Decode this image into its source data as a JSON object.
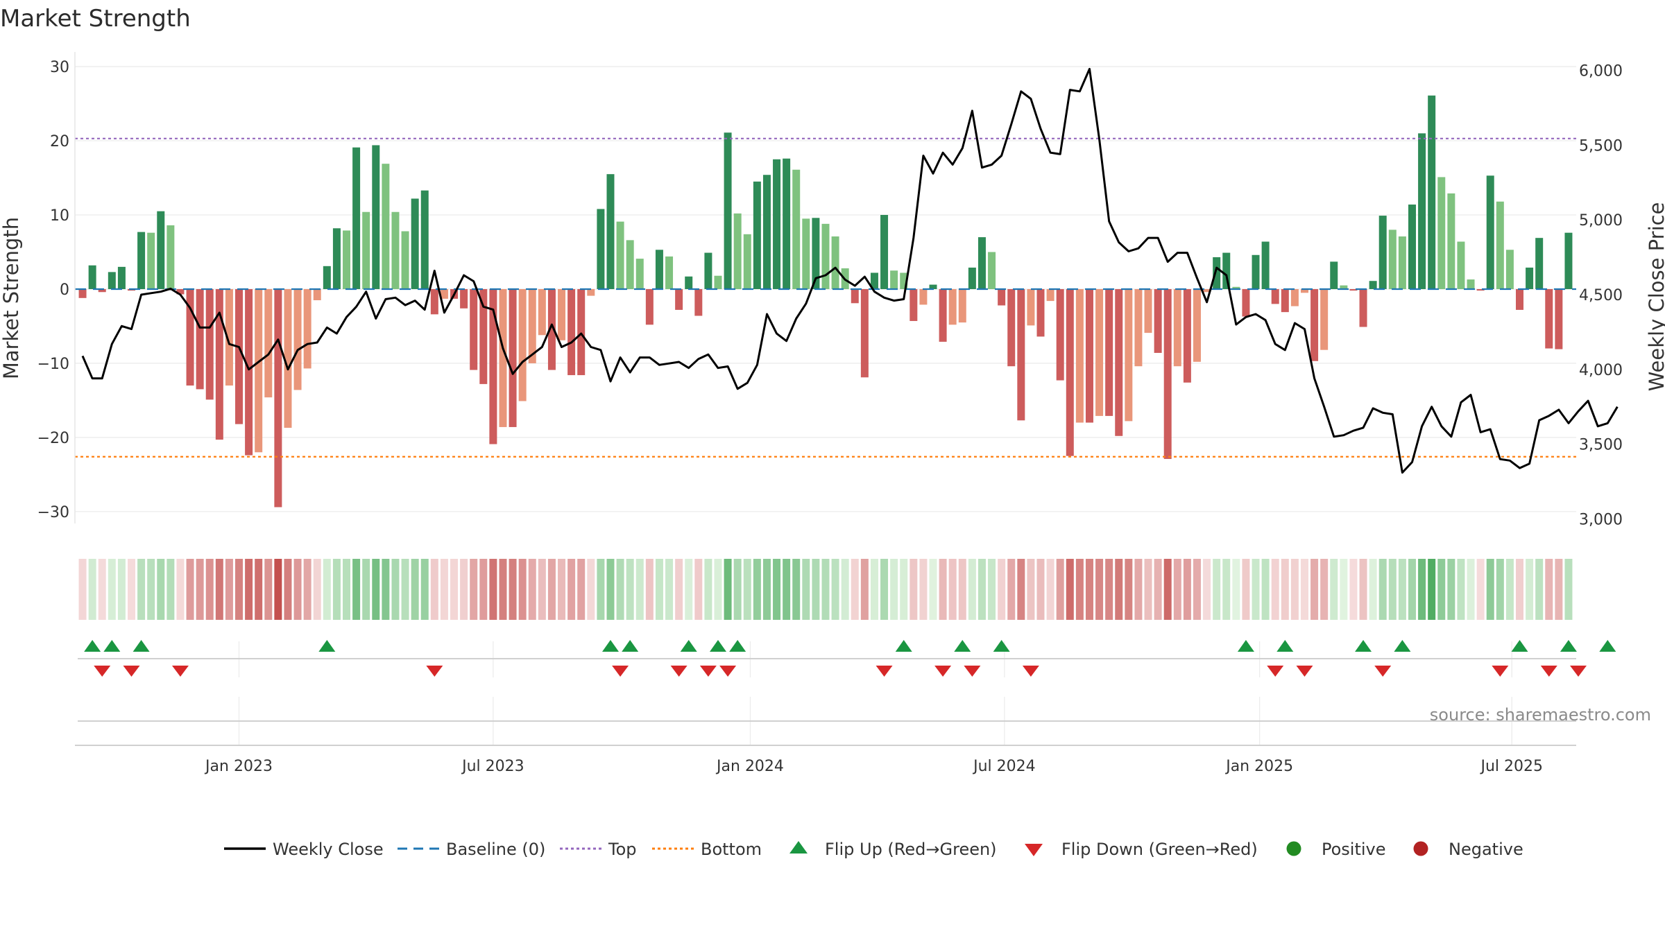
{
  "chart_data": {
    "type": "bar",
    "title": "Market Strength",
    "ylabel_left": "Market Strength",
    "ylabel_right": "Weekly Close Price",
    "source": "source: sharemaestro.com",
    "ylim_left": [
      -33,
      31.5
    ],
    "ylim_right": [
      2900,
      6100
    ],
    "yticks_left": [
      30,
      20,
      10,
      0,
      -10,
      -20,
      -30
    ],
    "ytick_labels_left": [
      "30",
      "20",
      "10",
      "0",
      "−10",
      "−20",
      "−30"
    ],
    "yticks_right": [
      6000,
      5500,
      5000,
      4500,
      4000,
      3500,
      3000
    ],
    "ytick_labels_right": [
      "6,000",
      "5,500",
      "5,000",
      "4,500",
      "4,000",
      "3,500",
      "3,000"
    ],
    "x_dates": [
      "Jan 2023",
      "Jul 2023",
      "Jan 2024",
      "Jul 2024",
      "Jan 2025",
      "Jul 2025"
    ],
    "x_tick_index": [
      16,
      42,
      68.3,
      94.3,
      120.4,
      146.2
    ],
    "top_level": 20.3,
    "bottom_level": -22.6,
    "grid": true,
    "legend_position": "bottom",
    "colors": {
      "pos_strong": "#2e8b57",
      "pos_weak": "#7fc27f",
      "neg_strong": "#cd5c5c",
      "neg_weak": "#e9967a",
      "close_line": "#000000",
      "baseline": "#1f77b4",
      "top": "#9467bd",
      "bottom": "#ff7f0e",
      "flip_up": "#1a9641",
      "flip_down": "#d62728",
      "positive": "#228b22",
      "negative": "#b22222"
    },
    "strength": [
      -1.2,
      3.2,
      -0.4,
      2.3,
      3,
      -0.2,
      7.7,
      7.6,
      10.5,
      8.6,
      -0.7,
      -13,
      -13.5,
      -14.9,
      -20.3,
      -13,
      -18.2,
      -22.4,
      -22,
      -14.6,
      -29.4,
      -18.7,
      -13.6,
      -10.7,
      -1.5,
      3.1,
      8.2,
      7.9,
      19.1,
      10.4,
      19.4,
      16.9,
      10.4,
      7.8,
      12.2,
      13.3,
      -3.4,
      -1.3,
      -1.3,
      -2.6,
      -10.9,
      -12.8,
      -20.9,
      -18.6,
      -18.6,
      -15.1,
      -10,
      -6.2,
      -10.9,
      -6.9,
      -11.6,
      -11.6,
      -0.9,
      10.8,
      15.5,
      9.1,
      6.6,
      4.1,
      -4.8,
      5.3,
      4.4,
      -2.8,
      1.7,
      -3.6,
      4.9,
      1.8,
      21.1,
      10.2,
      7.4,
      14.5,
      15.4,
      17.5,
      17.6,
      16.1,
      9.5,
      9.6,
      8.8,
      7.1,
      2.8,
      -1.9,
      -11.9,
      2.2,
      10,
      2.5,
      2.2,
      -4.3,
      -2.1,
      0.6,
      -7.1,
      -4.8,
      -4.5,
      2.9,
      7,
      5,
      -2.2,
      -10.4,
      -17.7,
      -4.9,
      -6.4,
      -1.6,
      -12.3,
      -22.5,
      -18,
      -18,
      -17.1,
      -17.1,
      -19.8,
      -17.8,
      -10.4,
      -5.9,
      -8.6,
      -22.9,
      -10.4,
      -12.6,
      -9.8,
      -0.4,
      4.3,
      4.9,
      0.3,
      -3.7,
      4.6,
      6.4,
      -2,
      -3.1,
      -2.3,
      -0.5,
      -9.7,
      -8.2,
      3.7,
      0.5,
      -0.2,
      -5.1,
      1.1,
      9.9,
      8,
      7.1,
      11.4,
      21,
      26.1,
      15.1,
      12.9,
      6.4,
      1.3,
      -0.2,
      15.3,
      11.8,
      5.3,
      -2.8,
      2.9,
      6.9,
      -8,
      -8.1,
      7.6
    ],
    "weekly_close": [
      4090,
      3940,
      3940,
      4170,
      4290,
      4270,
      4500,
      4510,
      4520,
      4540,
      4500,
      4410,
      4280,
      4280,
      4380,
      4170,
      4150,
      4000,
      4050,
      4100,
      4200,
      4000,
      4130,
      4170,
      4180,
      4280,
      4240,
      4350,
      4420,
      4520,
      4340,
      4470,
      4480,
      4430,
      4460,
      4400,
      4660,
      4380,
      4500,
      4630,
      4590,
      4420,
      4400,
      4140,
      3970,
      4050,
      4100,
      4150,
      4300,
      4150,
      4180,
      4240,
      4150,
      4130,
      3920,
      4080,
      3980,
      4080,
      4080,
      4030,
      4040,
      4050,
      4010,
      4070,
      4100,
      4010,
      4020,
      3870,
      3910,
      4030,
      4370,
      4240,
      4190,
      4340,
      4440,
      4610,
      4630,
      4680,
      4600,
      4560,
      4620,
      4520,
      4480,
      4460,
      4470,
      4880,
      5430,
      5310,
      5450,
      5370,
      5480,
      5730,
      5350,
      5370,
      5430,
      5640,
      5860,
      5810,
      5610,
      5450,
      5440,
      5870,
      5860,
      6010,
      5540,
      4990,
      4850,
      4790,
      4810,
      4880,
      4880,
      4720,
      4780,
      4780,
      4610,
      4450,
      4680,
      4630,
      4300,
      4350,
      4370,
      4330,
      4170,
      4130,
      4310,
      4270,
      3940,
      3750,
      3550,
      3560,
      3590,
      3610,
      3740,
      3710,
      3700,
      3310,
      3380,
      3620,
      3750,
      3620,
      3550,
      3780,
      3830,
      3580,
      3600,
      3400,
      3390,
      3340,
      3370,
      3660,
      3690,
      3730,
      3640,
      3720,
      3790,
      3620,
      3640,
      3750
    ],
    "flip_up_index": [
      1,
      3,
      6,
      25,
      54,
      56,
      62,
      65,
      67,
      84,
      90,
      94,
      119,
      123,
      131,
      135,
      147,
      152,
      156
    ],
    "flip_down_index": [
      2,
      5,
      10,
      36,
      55,
      61,
      64,
      66,
      82,
      88,
      91,
      97,
      122,
      125,
      133,
      145,
      150,
      153
    ]
  },
  "legend": {
    "weekly_close": "Weekly Close",
    "baseline": "Baseline (0)",
    "top": "Top",
    "bottom": "Bottom",
    "flip_up": "Flip Up (Red→Green)",
    "flip_down": "Flip Down (Green→Red)",
    "positive": "Positive",
    "negative": "Negative"
  }
}
